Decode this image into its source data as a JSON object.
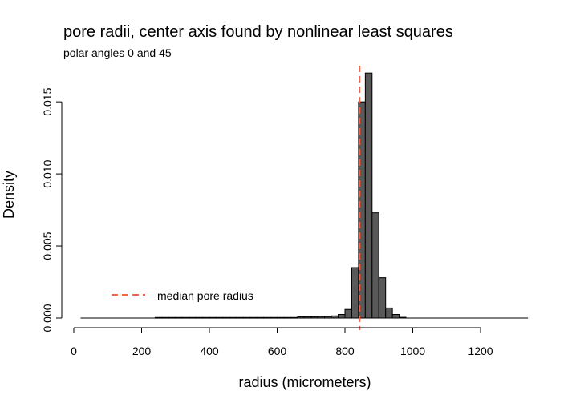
{
  "chart_data": {
    "type": "bar",
    "title": "pore radii, center axis found by nonlinear least squares",
    "subtitle": "polar angles 0 and 45",
    "xlabel": "radius (micrometers)",
    "ylabel": "Density",
    "xlim": [
      0,
      1350
    ],
    "ylim": [
      0,
      0.0175
    ],
    "x_ticks": [
      0,
      200,
      400,
      600,
      800,
      1000,
      1200
    ],
    "x_tick_labels": [
      "0",
      "200",
      "400",
      "600",
      "800",
      "1000",
      "1200"
    ],
    "y_ticks": [
      0,
      0.005,
      0.01,
      0.015
    ],
    "y_tick_labels": [
      "0.000",
      "0.005",
      "0.010",
      "0.015"
    ],
    "bin_width": 20,
    "bins": [
      {
        "start": 240,
        "end": 260,
        "value": 4e-05
      },
      {
        "start": 260,
        "end": 280,
        "value": 4e-05
      },
      {
        "start": 280,
        "end": 300,
        "value": 4e-05
      },
      {
        "start": 300,
        "end": 320,
        "value": 4e-05
      },
      {
        "start": 320,
        "end": 340,
        "value": 4e-05
      },
      {
        "start": 340,
        "end": 360,
        "value": 4e-05
      },
      {
        "start": 360,
        "end": 380,
        "value": 4e-05
      },
      {
        "start": 380,
        "end": 400,
        "value": 4e-05
      },
      {
        "start": 400,
        "end": 420,
        "value": 4e-05
      },
      {
        "start": 420,
        "end": 440,
        "value": 4e-05
      },
      {
        "start": 440,
        "end": 460,
        "value": 4e-05
      },
      {
        "start": 460,
        "end": 480,
        "value": 4e-05
      },
      {
        "start": 480,
        "end": 500,
        "value": 4e-05
      },
      {
        "start": 500,
        "end": 520,
        "value": 4e-05
      },
      {
        "start": 520,
        "end": 540,
        "value": 4e-05
      },
      {
        "start": 540,
        "end": 560,
        "value": 4e-05
      },
      {
        "start": 560,
        "end": 580,
        "value": 4e-05
      },
      {
        "start": 580,
        "end": 600,
        "value": 4e-05
      },
      {
        "start": 600,
        "end": 620,
        "value": 4e-05
      },
      {
        "start": 620,
        "end": 640,
        "value": 4e-05
      },
      {
        "start": 640,
        "end": 660,
        "value": 4e-05
      },
      {
        "start": 660,
        "end": 680,
        "value": 8e-05
      },
      {
        "start": 680,
        "end": 700,
        "value": 8e-05
      },
      {
        "start": 700,
        "end": 720,
        "value": 8e-05
      },
      {
        "start": 720,
        "end": 740,
        "value": 0.0001
      },
      {
        "start": 740,
        "end": 760,
        "value": 0.0001
      },
      {
        "start": 760,
        "end": 780,
        "value": 0.00015
      },
      {
        "start": 780,
        "end": 800,
        "value": 0.00025
      },
      {
        "start": 800,
        "end": 820,
        "value": 0.0006
      },
      {
        "start": 820,
        "end": 840,
        "value": 0.0035
      },
      {
        "start": 840,
        "end": 860,
        "value": 0.015
      },
      {
        "start": 860,
        "end": 880,
        "value": 0.017
      },
      {
        "start": 880,
        "end": 900,
        "value": 0.0073
      },
      {
        "start": 900,
        "end": 920,
        "value": 0.0028
      },
      {
        "start": 920,
        "end": 940,
        "value": 0.0007
      },
      {
        "start": 940,
        "end": 960,
        "value": 0.00025
      },
      {
        "start": 960,
        "end": 980,
        "value": 5e-05
      }
    ],
    "baseline_range": [
      20,
      1340
    ],
    "median_pore_radius": 843,
    "median_line_color": "#f4644a",
    "bar_color": "#595959",
    "legend": {
      "label": "median pore radius",
      "placement": "bottom-left",
      "line_style": "dashed"
    },
    "grid": false
  }
}
